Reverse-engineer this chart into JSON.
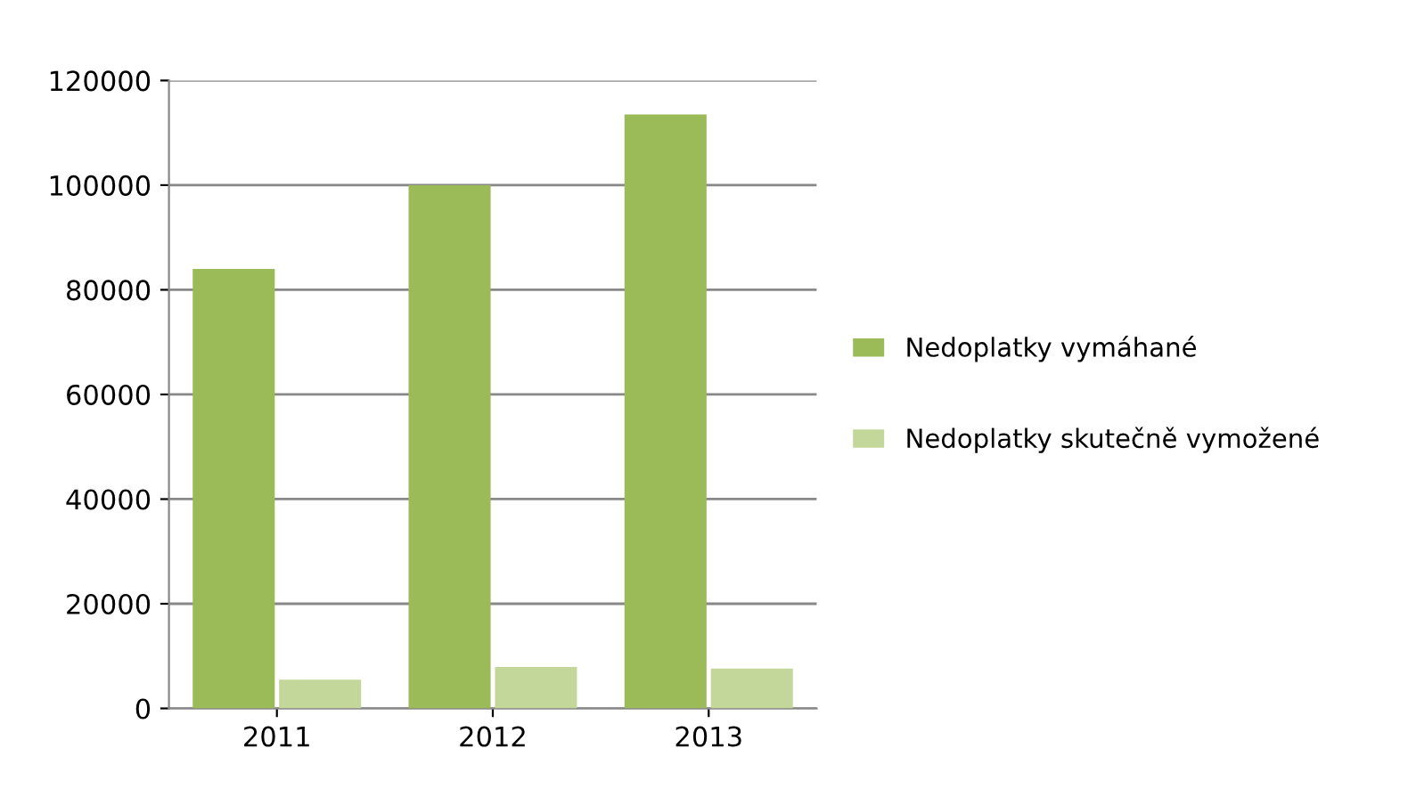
{
  "chart_data": {
    "type": "bar",
    "categories": [
      "2011",
      "2012",
      "2013"
    ],
    "series": [
      {
        "name": "Nedoplatky vymáhané",
        "color": "#9bbb59",
        "values": [
          84000,
          100000,
          113500
        ]
      },
      {
        "name": "Nedoplatky skutečně vymožené",
        "color": "#c4d79b",
        "values": [
          5500,
          7900,
          7600
        ]
      }
    ],
    "ylim": [
      0,
      120000
    ],
    "yticks": [
      0,
      20000,
      40000,
      60000,
      80000,
      100000,
      120000
    ],
    "grid": "y",
    "legend": "right"
  }
}
